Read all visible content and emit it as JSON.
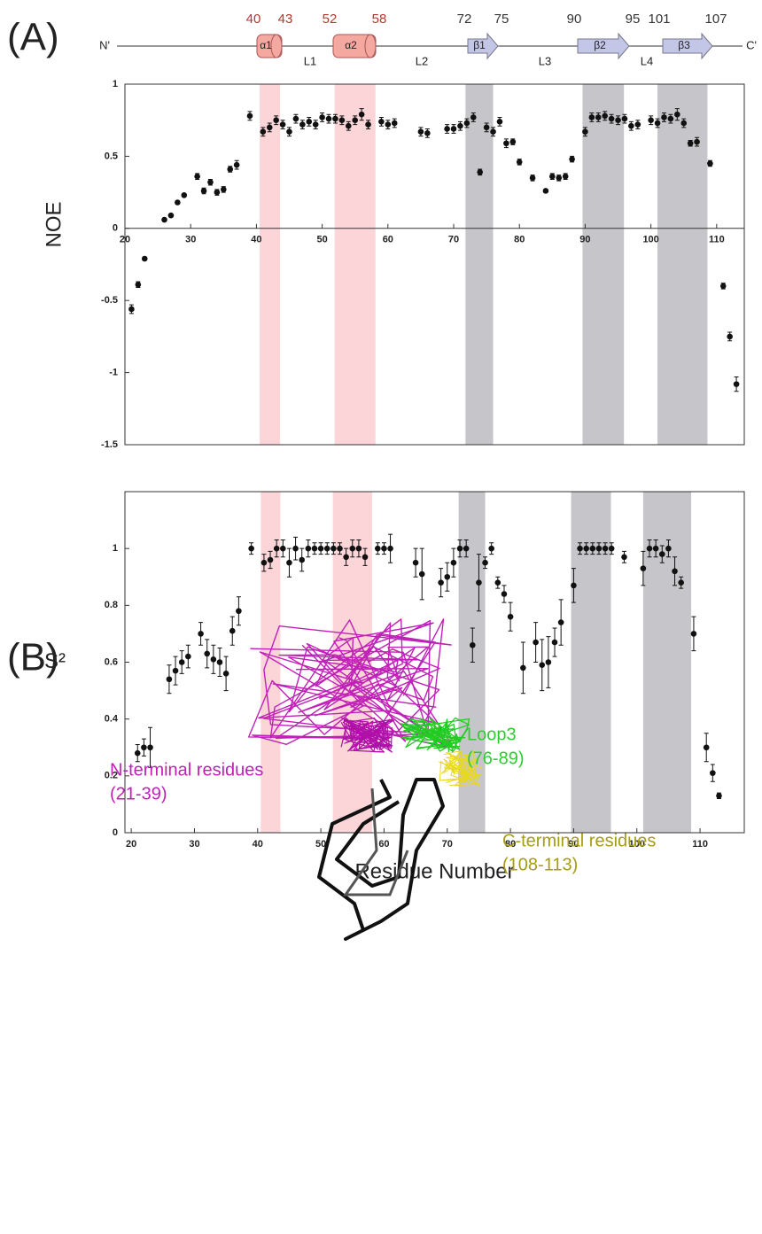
{
  "panel_labels": [
    "(A)",
    "(B)"
  ],
  "topology": {
    "n_label": "N'",
    "c_label": "C'",
    "elements": [
      {
        "label": "α1",
        "kind": "helix",
        "start": 40,
        "end": 43,
        "color": "#f4a8a0",
        "number_color": "#b03a2e"
      },
      {
        "label": "α2",
        "kind": "helix",
        "start": 52,
        "end": 58,
        "color": "#f4a8a0",
        "number_color": "#b03a2e"
      },
      {
        "label": "β1",
        "kind": "strand",
        "start": 72,
        "end": 75,
        "color": "#c3c6e6",
        "number_color": "#333333"
      },
      {
        "label": "β2",
        "kind": "strand",
        "start": 90,
        "end": 95,
        "color": "#c3c6e6",
        "number_color": "#333333"
      },
      {
        "label": "β3",
        "kind": "strand",
        "start": 101,
        "end": 107,
        "color": "#c3c6e6",
        "number_color": "#333333"
      }
    ],
    "loops": [
      "L1",
      "L2",
      "L3",
      "L4"
    ]
  },
  "chart_data": [
    {
      "type": "scatter",
      "ylabel": "NOE",
      "axis_at_zero": true,
      "x": [
        21,
        22,
        23,
        26,
        27,
        28,
        29,
        31,
        32,
        33,
        34,
        35,
        36,
        37,
        39,
        41,
        42,
        43,
        44,
        45,
        46,
        47,
        48,
        49,
        50,
        51,
        52,
        53,
        54,
        55,
        56,
        57,
        59,
        60,
        61,
        65,
        66,
        69,
        70,
        71,
        72,
        73,
        74,
        75,
        76,
        77,
        78,
        79,
        80,
        82,
        84,
        85,
        86,
        87,
        88,
        90,
        91,
        92,
        93,
        94,
        95,
        96,
        97,
        98,
        100,
        101,
        102,
        103,
        104,
        105,
        106,
        107,
        109,
        111,
        112,
        113
      ],
      "series": [
        {
          "color": "#111111",
          "values": [
            -0.56,
            -0.39,
            -0.21,
            0.06,
            0.09,
            0.18,
            0.23,
            0.36,
            0.26,
            0.32,
            0.25,
            0.27,
            0.41,
            0.44,
            0.78,
            0.67,
            0.7,
            0.75,
            0.72,
            0.67,
            0.76,
            0.72,
            0.74,
            0.72,
            0.77,
            0.76,
            0.76,
            0.75,
            0.71,
            0.75,
            0.79,
            0.72,
            0.74,
            0.72,
            0.73,
            0.67,
            0.66,
            0.69,
            0.69,
            0.71,
            0.73,
            0.77,
            0.39,
            0.7,
            0.67,
            0.74,
            0.59,
            0.6,
            0.46,
            0.35,
            0.26,
            0.36,
            0.35,
            0.36,
            0.48,
            0.67,
            0.77,
            0.77,
            0.78,
            0.76,
            0.75,
            0.76,
            0.71,
            0.72,
            0.75,
            0.73,
            0.77,
            0.76,
            0.79,
            0.73,
            0.59,
            0.6,
            0.45,
            -0.4,
            -0.75,
            -1.08
          ],
          "errors": [
            0.03,
            0.02,
            0.01,
            0.01,
            0.01,
            0.01,
            0.01,
            0.02,
            0.02,
            0.02,
            0.02,
            0.02,
            0.02,
            0.03,
            0.03,
            0.03,
            0.03,
            0.03,
            0.03,
            0.03,
            0.03,
            0.03,
            0.03,
            0.03,
            0.03,
            0.03,
            0.03,
            0.03,
            0.03,
            0.03,
            0.04,
            0.03,
            0.03,
            0.03,
            0.03,
            0.03,
            0.03,
            0.03,
            0.03,
            0.03,
            0.03,
            0.03,
            0.02,
            0.03,
            0.03,
            0.03,
            0.03,
            0.02,
            0.02,
            0.02,
            0.01,
            0.02,
            0.02,
            0.02,
            0.02,
            0.03,
            0.03,
            0.03,
            0.03,
            0.03,
            0.03,
            0.03,
            0.03,
            0.03,
            0.03,
            0.03,
            0.03,
            0.03,
            0.04,
            0.03,
            0.02,
            0.03,
            0.02,
            0.02,
            0.03,
            0.05
          ]
        }
      ],
      "xlim": [
        20,
        114.2
      ],
      "ylim": [
        -1.5,
        1
      ],
      "xticks": [
        20,
        30,
        40,
        50,
        60,
        70,
        80,
        90,
        100,
        110
      ],
      "yticks": [
        1,
        0.5,
        0,
        -0.5,
        -1,
        -1.5
      ],
      "shaded": [
        {
          "start": 40.5,
          "end": 43.6,
          "color": "#fbd5d8"
        },
        {
          "start": 51.9,
          "end": 58.1,
          "color": "#fbd5d8"
        },
        {
          "start": 71.8,
          "end": 76,
          "color": "#c6c6ca"
        },
        {
          "start": 89.6,
          "end": 95.9,
          "color": "#c6c6ca"
        },
        {
          "start": 101,
          "end": 108.6,
          "color": "#c6c6ca"
        }
      ]
    },
    {
      "type": "scatter",
      "ylabel": "S²",
      "xlabel": "Residue Number",
      "axis_at_zero": false,
      "x": [
        21,
        22,
        23,
        26,
        27,
        28,
        29,
        31,
        32,
        33,
        34,
        35,
        36,
        37,
        39,
        41,
        42,
        43,
        44,
        45,
        46,
        47,
        48,
        49,
        50,
        51,
        52,
        53,
        54,
        55,
        56,
        57,
        59,
        60,
        61,
        65,
        66,
        69,
        70,
        71,
        72,
        73,
        74,
        75,
        76,
        77,
        78,
        79,
        80,
        82,
        84,
        85,
        86,
        87,
        88,
        90,
        91,
        92,
        93,
        94,
        95,
        96,
        98,
        101,
        102,
        103,
        104,
        105,
        106,
        107,
        109,
        111,
        112,
        113
      ],
      "series": [
        {
          "color": "#111111",
          "values": [
            0.28,
            0.3,
            0.3,
            0.54,
            0.57,
            0.6,
            0.62,
            0.7,
            0.63,
            0.61,
            0.6,
            0.56,
            0.71,
            0.78,
            1,
            0.95,
            0.96,
            1,
            1,
            0.95,
            1,
            0.96,
            1,
            1,
            1,
            1,
            1,
            1,
            0.97,
            1,
            1,
            0.97,
            1,
            1,
            1,
            0.95,
            0.91,
            0.88,
            0.9,
            0.95,
            1,
            1,
            0.66,
            0.88,
            0.95,
            1,
            0.88,
            0.84,
            0.76,
            0.58,
            0.67,
            0.59,
            0.6,
            0.67,
            0.74,
            0.87,
            1,
            1,
            1,
            1,
            1,
            1,
            0.97,
            0.93,
            1,
            1,
            0.98,
            1,
            0.92,
            0.88,
            0.7,
            0.3,
            0.21,
            0.13
          ],
          "errors": [
            0.03,
            0.03,
            0.07,
            0.05,
            0.05,
            0.04,
            0.04,
            0.04,
            0.05,
            0.05,
            0.05,
            0.06,
            0.05,
            0.05,
            0.02,
            0.03,
            0.03,
            0.03,
            0.03,
            0.05,
            0.04,
            0.04,
            0.03,
            0.02,
            0.02,
            0.02,
            0.02,
            0.02,
            0.03,
            0.03,
            0.03,
            0.03,
            0.02,
            0.02,
            0.05,
            0.05,
            0.09,
            0.05,
            0.05,
            0.05,
            0.03,
            0.03,
            0.06,
            0.1,
            0.02,
            0.02,
            0.02,
            0.03,
            0.05,
            0.09,
            0.07,
            0.09,
            0.09,
            0.05,
            0.08,
            0.06,
            0.02,
            0.02,
            0.02,
            0.02,
            0.02,
            0.02,
            0.02,
            0.06,
            0.03,
            0.03,
            0.03,
            0.03,
            0.05,
            0.02,
            0.06,
            0.05,
            0.03,
            0.01
          ]
        }
      ],
      "xlim": [
        19,
        117
      ],
      "ylim": [
        0,
        1.2
      ],
      "xticks": [
        20,
        30,
        40,
        50,
        60,
        70,
        80,
        90,
        100,
        110
      ],
      "yticks": [
        0,
        0.2,
        0.4,
        0.6,
        0.8,
        1
      ],
      "shaded": [
        {
          "start": 40.5,
          "end": 43.6,
          "color": "#fbd5d8"
        },
        {
          "start": 51.9,
          "end": 58.1,
          "color": "#fbd5d8"
        },
        {
          "start": 71.8,
          "end": 76,
          "color": "#c6c6ca"
        },
        {
          "start": 89.6,
          "end": 95.9,
          "color": "#c6c6ca"
        },
        {
          "start": 101,
          "end": 108.6,
          "color": "#c6c6ca"
        }
      ]
    }
  ],
  "structure_labels": [
    {
      "lines": [
        "N-terminal residues",
        "(21-39)"
      ],
      "color": "#c020b8"
    },
    {
      "lines": [
        "Loop3",
        "(76-89)"
      ],
      "color": "#2ecc2e"
    },
    {
      "lines": [
        "C-terminal residues",
        "(108-113)"
      ],
      "color": "#a59d12"
    }
  ]
}
